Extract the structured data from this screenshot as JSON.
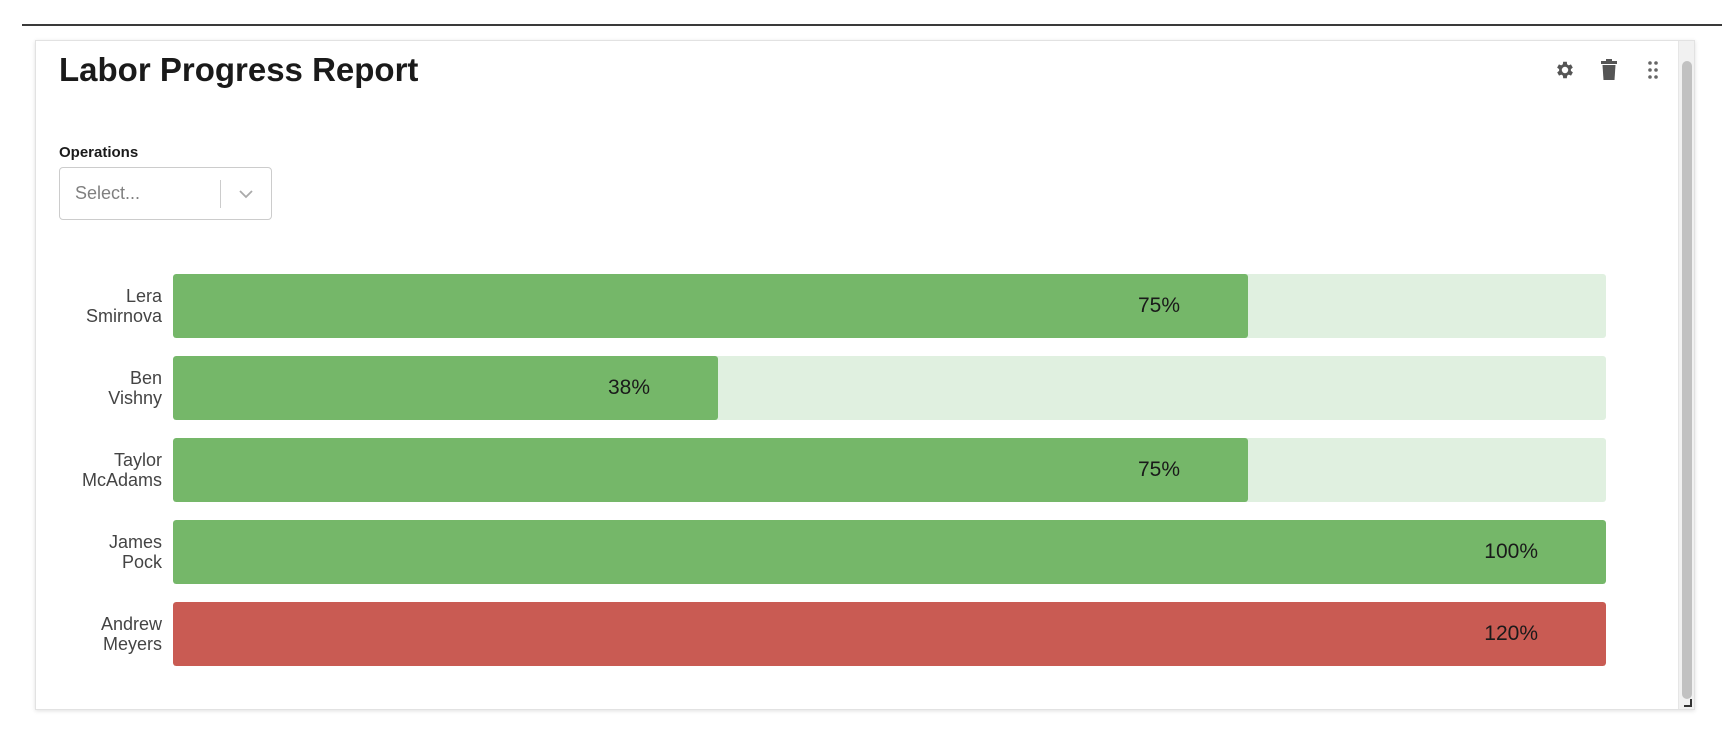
{
  "widget": {
    "title": "Labor Progress Report",
    "icons": [
      "gear-icon",
      "trash-icon",
      "drag-handle-icon"
    ]
  },
  "filter": {
    "label": "Operations",
    "placeholder": "Select..."
  },
  "colors": {
    "on_track": "#75b769",
    "over": "#c95b53",
    "track_bg": "#e0f0e0"
  },
  "chart_data": {
    "type": "bar",
    "orientation": "horizontal",
    "categories": [
      "Lera Smirnova",
      "Ben Vishny",
      "Taylor McAdams",
      "James Pock",
      "Andrew Meyers"
    ],
    "label_lines": [
      [
        "Lera",
        "Smirnova"
      ],
      [
        "Ben",
        "Vishny"
      ],
      [
        "Taylor",
        "McAdams"
      ],
      [
        "James",
        "Pock"
      ],
      [
        "Andrew",
        "Meyers"
      ]
    ],
    "values": [
      75,
      38,
      75,
      100,
      120
    ],
    "value_labels": [
      "75%",
      "38%",
      "75%",
      "100%",
      "120%"
    ],
    "max": 100
  }
}
